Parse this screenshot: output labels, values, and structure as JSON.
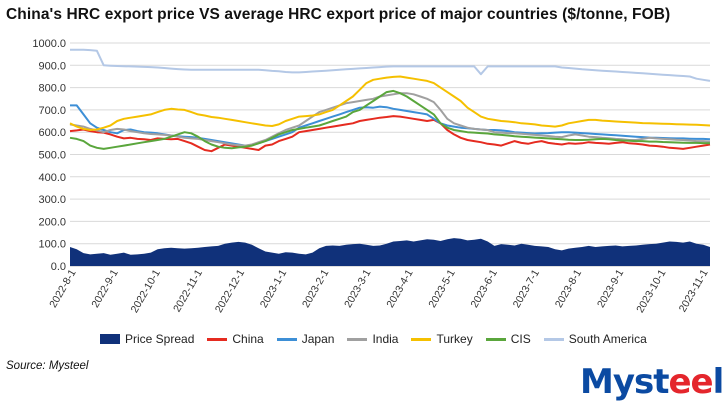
{
  "chart_data": {
    "type": "line",
    "title": "China's HRC export price VS average HRC export price of major countries ($/tonne, FOB)",
    "xlabel": "",
    "ylabel": "",
    "ylim": [
      0,
      1000
    ],
    "yticks": [
      0,
      100,
      200,
      300,
      400,
      500,
      600,
      700,
      800,
      900,
      1000
    ],
    "ytick_labels": [
      "0.0",
      "100.0",
      "200.0",
      "300.0",
      "400.0",
      "500.0",
      "600.0",
      "700.0",
      "800.0",
      "900.0",
      "1000.0"
    ],
    "xtick_labels": [
      "2022-8-1",
      "2022-9-1",
      "2022-10-1",
      "2022-11-1",
      "2022-12-1",
      "2023-1-1",
      "2023-2-1",
      "2023-3-1",
      "2023-4-1",
      "2023-5-1",
      "2023-6-1",
      "2023-7-1",
      "2023-8-1",
      "2023-9-1",
      "2023-10-1",
      "2023-11-1"
    ],
    "gridlines": "horizontal",
    "legend_position": "bottom",
    "series": [
      {
        "name": "Price Spread",
        "kind": "area",
        "color": "#10317a",
        "values": [
          85,
          75,
          58,
          52,
          55,
          58,
          50,
          55,
          60,
          50,
          52,
          55,
          60,
          75,
          80,
          82,
          80,
          78,
          80,
          82,
          85,
          88,
          90,
          100,
          105,
          108,
          105,
          95,
          80,
          65,
          60,
          55,
          62,
          60,
          55,
          52,
          60,
          80,
          90,
          92,
          90,
          95,
          98,
          100,
          95,
          90,
          92,
          100,
          110,
          112,
          115,
          110,
          115,
          120,
          118,
          112,
          120,
          125,
          122,
          115,
          118,
          122,
          110,
          90,
          98,
          95,
          92,
          100,
          95,
          90,
          88,
          85,
          75,
          70,
          78,
          82,
          85,
          90,
          85,
          88,
          90,
          92,
          88,
          90,
          92,
          95,
          98,
          100,
          105,
          110,
          108,
          105,
          110,
          100,
          95,
          85
        ]
      },
      {
        "name": "China",
        "kind": "line",
        "color": "#e52b20",
        "values": [
          605,
          608,
          612,
          605,
          600,
          598,
          590,
          580,
          572,
          575,
          570,
          568,
          565,
          572,
          570,
          568,
          570,
          560,
          550,
          535,
          520,
          515,
          530,
          545,
          540,
          535,
          530,
          525,
          520,
          540,
          545,
          560,
          570,
          580,
          600,
          605,
          610,
          615,
          620,
          625,
          630,
          635,
          640,
          650,
          655,
          660,
          665,
          668,
          672,
          670,
          665,
          660,
          655,
          650,
          655,
          640,
          610,
          590,
          575,
          565,
          560,
          555,
          548,
          545,
          540,
          550,
          560,
          552,
          548,
          555,
          560,
          552,
          548,
          545,
          550,
          548,
          550,
          555,
          552,
          550,
          548,
          552,
          555,
          550,
          548,
          545,
          540,
          538,
          535,
          530,
          528,
          525,
          530,
          535,
          540,
          545
        ]
      },
      {
        "name": "Japan",
        "kind": "line",
        "color": "#3d8fd6",
        "values": [
          720,
          720,
          680,
          640,
          620,
          610,
          600,
          595,
          610,
          612,
          605,
          600,
          598,
          595,
          590,
          585,
          582,
          580,
          578,
          575,
          570,
          565,
          560,
          555,
          550,
          545,
          540,
          542,
          550,
          560,
          570,
          580,
          590,
          600,
          620,
          630,
          640,
          650,
          660,
          670,
          680,
          690,
          700,
          710,
          712,
          710,
          715,
          712,
          705,
          700,
          695,
          690,
          685,
          680,
          660,
          640,
          630,
          625,
          620,
          618,
          615,
          612,
          610,
          610,
          608,
          605,
          600,
          598,
          596,
          594,
          595,
          596,
          598,
          600,
          600,
          598,
          596,
          594,
          592,
          590,
          588,
          586,
          584,
          582,
          580,
          578,
          576,
          575,
          574,
          573,
          572,
          572,
          571,
          570,
          570,
          568
        ]
      },
      {
        "name": "India",
        "kind": "line",
        "color": "#a0a0a0",
        "values": [
          635,
          630,
          625,
          615,
          608,
          600,
          610,
          615,
          612,
          605,
          600,
          595,
          592,
          590,
          588,
          585,
          580,
          575,
          572,
          570,
          565,
          560,
          555,
          550,
          545,
          542,
          540,
          545,
          555,
          565,
          580,
          595,
          610,
          620,
          630,
          650,
          670,
          690,
          700,
          710,
          720,
          730,
          735,
          740,
          745,
          750,
          760,
          765,
          770,
          775,
          775,
          770,
          760,
          750,
          735,
          700,
          660,
          640,
          630,
          620,
          615,
          612,
          610,
          600,
          598,
          596,
          595,
          593,
          590,
          588,
          585,
          583,
          580,
          578,
          585,
          590,
          585,
          580,
          578,
          575,
          573,
          570,
          568,
          565,
          565,
          570,
          575,
          572,
          570,
          568,
          566,
          565,
          563,
          560,
          560,
          558
        ]
      },
      {
        "name": "Turkey",
        "kind": "line",
        "color": "#f5c000",
        "values": [
          640,
          625,
          615,
          610,
          612,
          620,
          630,
          650,
          660,
          665,
          670,
          675,
          680,
          690,
          700,
          705,
          702,
          700,
          690,
          680,
          675,
          668,
          665,
          660,
          655,
          650,
          645,
          640,
          635,
          630,
          628,
          635,
          650,
          660,
          670,
          672,
          675,
          680,
          690,
          700,
          720,
          740,
          760,
          790,
          820,
          835,
          840,
          845,
          848,
          850,
          845,
          840,
          835,
          830,
          820,
          800,
          780,
          760,
          740,
          710,
          690,
          670,
          660,
          655,
          650,
          648,
          645,
          640,
          638,
          635,
          630,
          628,
          625,
          630,
          640,
          645,
          650,
          655,
          655,
          652,
          650,
          648,
          646,
          645,
          643,
          641,
          640,
          639,
          638,
          637,
          636,
          635,
          634,
          633,
          632,
          630
        ]
      },
      {
        "name": "CIS",
        "kind": "line",
        "color": "#5aa63c",
        "values": [
          575,
          570,
          560,
          540,
          530,
          525,
          530,
          535,
          540,
          545,
          550,
          555,
          560,
          565,
          570,
          580,
          590,
          600,
          595,
          580,
          560,
          545,
          535,
          530,
          528,
          532,
          535,
          540,
          550,
          560,
          575,
          590,
          600,
          610,
          615,
          620,
          625,
          630,
          640,
          650,
          660,
          670,
          690,
          700,
          720,
          740,
          760,
          780,
          785,
          775,
          760,
          740,
          720,
          700,
          680,
          640,
          620,
          610,
          605,
          600,
          598,
          596,
          594,
          590,
          588,
          585,
          582,
          580,
          578,
          576,
          574,
          572,
          570,
          568,
          566,
          565,
          565,
          566,
          568,
          570,
          568,
          565,
          563,
          562,
          560,
          560,
          558,
          558,
          556,
          555,
          554,
          553,
          552,
          552,
          551,
          550
        ]
      },
      {
        "name": "South America",
        "kind": "line",
        "color": "#b4c8e6",
        "values": [
          970,
          970,
          970,
          968,
          965,
          900,
          898,
          897,
          896,
          895,
          894,
          893,
          892,
          890,
          888,
          885,
          883,
          881,
          880,
          880,
          880,
          880,
          880,
          880,
          880,
          880,
          880,
          880,
          880,
          878,
          875,
          873,
          870,
          868,
          868,
          870,
          872,
          874,
          876,
          878,
          880,
          882,
          884,
          886,
          888,
          890,
          892,
          894,
          895,
          895,
          895,
          895,
          895,
          895,
          895,
          895,
          895,
          895,
          895,
          895,
          895,
          860,
          895,
          895,
          895,
          895,
          895,
          895,
          895,
          895,
          895,
          895,
          895,
          890,
          888,
          885,
          882,
          880,
          878,
          876,
          874,
          872,
          870,
          868,
          866,
          864,
          862,
          860,
          858,
          856,
          854,
          852,
          850,
          840,
          835,
          830
        ]
      }
    ]
  },
  "source": "Source: Mysteel",
  "logo": {
    "text_main": "Myst",
    "text_accent": "ee",
    "text_end": "l"
  }
}
